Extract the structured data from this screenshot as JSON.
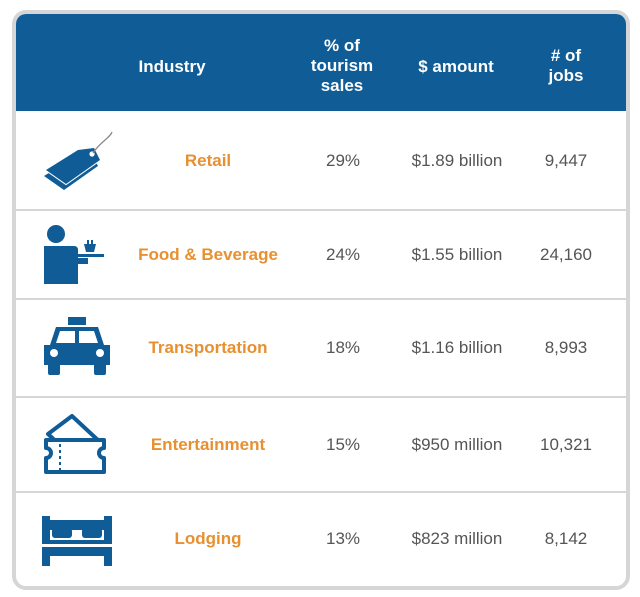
{
  "chart_data": {
    "type": "table",
    "columns": [
      "Industry",
      "% of tourism sales",
      "$ amount",
      "# of jobs"
    ],
    "rows": [
      {
        "industry": "Retail",
        "icon": "price-tag-icon",
        "pct": "29%",
        "amount": "$1.89 billion",
        "jobs": "9,447"
      },
      {
        "industry": "Food & Beverage",
        "icon": "waiter-icon",
        "pct": "24%",
        "amount": "$1.55 billion",
        "jobs": "24,160"
      },
      {
        "industry": "Transportation",
        "icon": "taxi-icon",
        "pct": "18%",
        "amount": "$1.16 billion",
        "jobs": "8,993"
      },
      {
        "industry": "Entertainment",
        "icon": "tickets-icon",
        "pct": "15%",
        "amount": "$950 million",
        "jobs": "10,321"
      },
      {
        "industry": "Lodging",
        "icon": "bed-icon",
        "pct": "13%",
        "amount": "$823 million",
        "jobs": "8,142"
      }
    ]
  },
  "header": {
    "industry": "Industry",
    "pct_line1": "% of",
    "pct_line2": "tourism",
    "pct_line3": "sales",
    "amount": "$ amount",
    "jobs_line1": "# of",
    "jobs_line2": "jobs"
  },
  "colors": {
    "header_bg": "#0f5c97",
    "industry_text": "#e8902f",
    "icon": "#0f5c97",
    "frame_border": "#d6d6d6"
  }
}
